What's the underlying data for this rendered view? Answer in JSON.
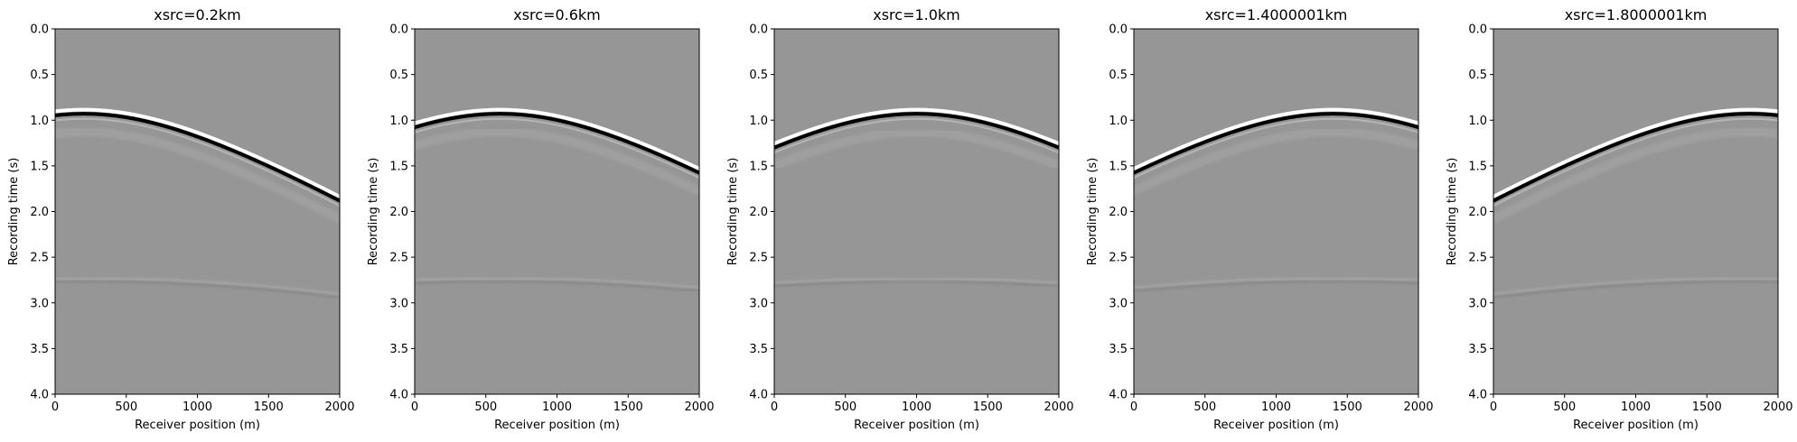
{
  "figure": {
    "background": "#ffffff",
    "colormap": "gray",
    "background_gray": "#969696"
  },
  "chart_data": [
    {
      "type": "heatmap",
      "title": "xsrc=0.2km",
      "xlabel": "Receiver position (m)",
      "ylabel": "Recording time (s)",
      "xlim": [
        0,
        2000
      ],
      "ylim": [
        4.0,
        0.0
      ],
      "x_ticks": [
        "0",
        "500",
        "1000",
        "1500",
        "2000"
      ],
      "y_ticks": [
        "0.0",
        "0.5",
        "1.0",
        "1.5",
        "2.0",
        "2.5",
        "3.0",
        "3.5",
        "4.0"
      ],
      "source_position_m": 200,
      "events": [
        {
          "name": "direct_reflection",
          "apex_position_m": 200,
          "apex_time_s": 0.93,
          "velocity_m_per_s": 1100,
          "amplitude": "strong"
        },
        {
          "name": "deeper_reflection",
          "apex_position_m": 200,
          "apex_time_s": 2.75,
          "velocity_m_per_s": 1800,
          "amplitude": "weak"
        }
      ],
      "grid": false
    },
    {
      "type": "heatmap",
      "title": "xsrc=0.6km",
      "xlabel": "Receiver position (m)",
      "ylabel": "Recording time (s)",
      "xlim": [
        0,
        2000
      ],
      "ylim": [
        4.0,
        0.0
      ],
      "x_ticks": [
        "0",
        "500",
        "1000",
        "1500",
        "2000"
      ],
      "y_ticks": [
        "0.0",
        "0.5",
        "1.0",
        "1.5",
        "2.0",
        "2.5",
        "3.0",
        "3.5",
        "4.0"
      ],
      "source_position_m": 600,
      "events": [
        {
          "name": "direct_reflection",
          "apex_position_m": 600,
          "apex_time_s": 0.93,
          "velocity_m_per_s": 1100,
          "amplitude": "strong"
        },
        {
          "name": "deeper_reflection",
          "apex_position_m": 600,
          "apex_time_s": 2.75,
          "velocity_m_per_s": 1800,
          "amplitude": "weak"
        }
      ],
      "grid": false
    },
    {
      "type": "heatmap",
      "title": "xsrc=1.0km",
      "xlabel": "Receiver position (m)",
      "ylabel": "Recording time (s)",
      "xlim": [
        0,
        2000
      ],
      "ylim": [
        4.0,
        0.0
      ],
      "x_ticks": [
        "0",
        "500",
        "1000",
        "1500",
        "2000"
      ],
      "y_ticks": [
        "0.0",
        "0.5",
        "1.0",
        "1.5",
        "2.0",
        "2.5",
        "3.0",
        "3.5",
        "4.0"
      ],
      "source_position_m": 1000,
      "events": [
        {
          "name": "direct_reflection",
          "apex_position_m": 1000,
          "apex_time_s": 0.93,
          "velocity_m_per_s": 1100,
          "amplitude": "strong"
        },
        {
          "name": "deeper_reflection",
          "apex_position_m": 1000,
          "apex_time_s": 2.75,
          "velocity_m_per_s": 1800,
          "amplitude": "weak"
        }
      ],
      "grid": false
    },
    {
      "type": "heatmap",
      "title": "xsrc=1.4000001km",
      "xlabel": "Receiver position (m)",
      "ylabel": "Recording time (s)",
      "xlim": [
        0,
        2000
      ],
      "ylim": [
        4.0,
        0.0
      ],
      "x_ticks": [
        "0",
        "500",
        "1000",
        "1500",
        "2000"
      ],
      "y_ticks": [
        "0.0",
        "0.5",
        "1.0",
        "1.5",
        "2.0",
        "2.5",
        "3.0",
        "3.5",
        "4.0"
      ],
      "source_position_m": 1400,
      "events": [
        {
          "name": "direct_reflection",
          "apex_position_m": 1400,
          "apex_time_s": 0.93,
          "velocity_m_per_s": 1100,
          "amplitude": "strong"
        },
        {
          "name": "deeper_reflection",
          "apex_position_m": 1400,
          "apex_time_s": 2.75,
          "velocity_m_per_s": 1800,
          "amplitude": "weak"
        }
      ],
      "grid": false
    },
    {
      "type": "heatmap",
      "title": "xsrc=1.8000001km",
      "xlabel": "Receiver position (m)",
      "ylabel": "Recording time (s)",
      "xlim": [
        0,
        2000
      ],
      "ylim": [
        4.0,
        0.0
      ],
      "x_ticks": [
        "0",
        "500",
        "1000",
        "1500",
        "2000"
      ],
      "y_ticks": [
        "0.0",
        "0.5",
        "1.0",
        "1.5",
        "2.0",
        "2.5",
        "3.0",
        "3.5",
        "4.0"
      ],
      "source_position_m": 1800,
      "events": [
        {
          "name": "direct_reflection",
          "apex_position_m": 1800,
          "apex_time_s": 0.93,
          "velocity_m_per_s": 1100,
          "amplitude": "strong"
        },
        {
          "name": "deeper_reflection",
          "apex_position_m": 1800,
          "apex_time_s": 2.75,
          "velocity_m_per_s": 1800,
          "amplitude": "weak"
        }
      ],
      "grid": false
    }
  ]
}
